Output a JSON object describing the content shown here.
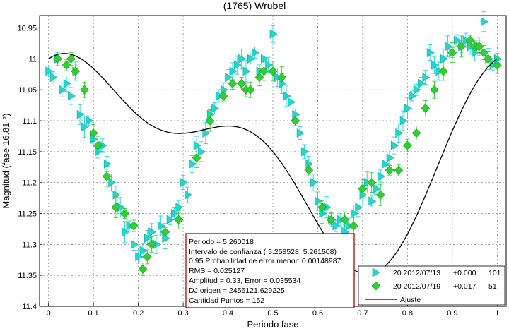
{
  "chart_data": {
    "type": "scatter",
    "title": "(1765) Wrubel",
    "xlabel": "Periodo fase",
    "ylabel": "Magnitud (fase 16.81 °)",
    "xlim": [
      -0.02,
      1.02
    ],
    "ylim": [
      10.93,
      11.4
    ],
    "y_reversed": true,
    "grid": true,
    "x_ticks": [
      "0",
      "0.1",
      "0.2",
      "0.3",
      "0.4",
      "0.5",
      "0.6",
      "0.7",
      "0.8",
      "0.9",
      "1"
    ],
    "y_ticks": [
      "10.95",
      "11",
      "11.05",
      "11.1",
      "11.15",
      "11.2",
      "11.25",
      "11.3",
      "11.35",
      "11.4"
    ],
    "legend_position": "bottom-right",
    "series": [
      {
        "name": "I20 2012/07/13",
        "offset": "+0.000",
        "count": "101",
        "marker": "triangle-right",
        "color": "#20d8d0",
        "points": [
          [
            0.0,
            11.02
          ],
          [
            0.01,
            11.03
          ],
          [
            0.02,
            11.0
          ],
          [
            0.03,
            11.05
          ],
          [
            0.04,
            11.04
          ],
          [
            0.05,
            11.06
          ],
          [
            0.06,
            11.02
          ],
          [
            0.07,
            11.09
          ],
          [
            0.08,
            11.11
          ],
          [
            0.09,
            11.1
          ],
          [
            0.1,
            11.13
          ],
          [
            0.11,
            11.15
          ],
          [
            0.12,
            11.14
          ],
          [
            0.13,
            11.17
          ],
          [
            0.14,
            11.2
          ],
          [
            0.15,
            11.22
          ],
          [
            0.16,
            11.24
          ],
          [
            0.17,
            11.28
          ],
          [
            0.18,
            11.27
          ],
          [
            0.19,
            11.3
          ],
          [
            0.2,
            11.32
          ],
          [
            0.21,
            11.31
          ],
          [
            0.22,
            11.29
          ],
          [
            0.23,
            11.28
          ],
          [
            0.24,
            11.3
          ],
          [
            0.25,
            11.27
          ],
          [
            0.26,
            11.29
          ],
          [
            0.27,
            11.26
          ],
          [
            0.28,
            11.25
          ],
          [
            0.29,
            11.24
          ],
          [
            0.3,
            11.2
          ],
          [
            0.31,
            11.22
          ],
          [
            0.32,
            11.17
          ],
          [
            0.33,
            11.14
          ],
          [
            0.34,
            11.15
          ],
          [
            0.35,
            11.12
          ],
          [
            0.36,
            11.09
          ],
          [
            0.37,
            11.08
          ],
          [
            0.38,
            11.06
          ],
          [
            0.39,
            11.05
          ],
          [
            0.4,
            11.03
          ],
          [
            0.41,
            11.02
          ],
          [
            0.42,
            11.01
          ],
          [
            0.43,
            11.0
          ],
          [
            0.44,
            11.02
          ],
          [
            0.45,
            11.0
          ],
          [
            0.46,
            10.99
          ],
          [
            0.47,
            11.02
          ],
          [
            0.48,
            11.0
          ],
          [
            0.49,
            11.01
          ],
          [
            0.5,
            10.96
          ],
          [
            0.51,
            11.03
          ],
          [
            0.52,
            11.04
          ],
          [
            0.53,
            11.06
          ],
          [
            0.54,
            11.07
          ],
          [
            0.55,
            11.09
          ],
          [
            0.56,
            11.12
          ],
          [
            0.57,
            11.15
          ],
          [
            0.58,
            11.17
          ],
          [
            0.59,
            11.2
          ],
          [
            0.6,
            11.23
          ],
          [
            0.61,
            11.25
          ],
          [
            0.62,
            11.24
          ],
          [
            0.63,
            11.26
          ],
          [
            0.64,
            11.27
          ],
          [
            0.65,
            11.26
          ],
          [
            0.66,
            11.28
          ],
          [
            0.67,
            11.27
          ],
          [
            0.68,
            11.25
          ],
          [
            0.69,
            11.24
          ],
          [
            0.7,
            11.22
          ],
          [
            0.71,
            11.2
          ],
          [
            0.72,
            11.23
          ],
          [
            0.73,
            11.21
          ],
          [
            0.74,
            11.19
          ],
          [
            0.75,
            11.17
          ],
          [
            0.76,
            11.16
          ],
          [
            0.77,
            11.14
          ],
          [
            0.78,
            11.12
          ],
          [
            0.79,
            11.1
          ],
          [
            0.8,
            11.08
          ],
          [
            0.81,
            11.06
          ],
          [
            0.82,
            11.05
          ],
          [
            0.83,
            11.04
          ],
          [
            0.84,
            11.03
          ],
          [
            0.85,
            10.99
          ],
          [
            0.86,
            11.01
          ],
          [
            0.87,
            11.02
          ],
          [
            0.88,
            11.0
          ],
          [
            0.89,
            10.98
          ],
          [
            0.9,
            10.99
          ],
          [
            0.91,
            10.97
          ],
          [
            0.92,
            10.98
          ],
          [
            0.93,
            10.97
          ],
          [
            0.94,
            10.98
          ],
          [
            0.95,
            10.99
          ],
          [
            0.96,
            10.98
          ],
          [
            0.97,
            10.94
          ],
          [
            0.98,
            11.0
          ],
          [
            0.99,
            11.01
          ],
          [
            1.0,
            11.0
          ]
        ]
      },
      {
        "name": "I20 2012/07/19",
        "offset": "+0.017",
        "count": "51",
        "marker": "diamond",
        "color": "#30d030",
        "points": [
          [
            0.02,
            11.0
          ],
          [
            0.04,
            11.01
          ],
          [
            0.05,
            11.0
          ],
          [
            0.06,
            11.02
          ],
          [
            0.08,
            11.05
          ],
          [
            0.1,
            11.12
          ],
          [
            0.11,
            11.14
          ],
          [
            0.13,
            11.19
          ],
          [
            0.15,
            11.24
          ],
          [
            0.17,
            11.25
          ],
          [
            0.19,
            11.27
          ],
          [
            0.21,
            11.34
          ],
          [
            0.22,
            11.32
          ],
          [
            0.23,
            11.3
          ],
          [
            0.26,
            11.28
          ],
          [
            0.29,
            11.26
          ],
          [
            0.33,
            11.16
          ],
          [
            0.36,
            11.1
          ],
          [
            0.39,
            11.06
          ],
          [
            0.41,
            11.04
          ],
          [
            0.43,
            11.04
          ],
          [
            0.44,
            11.05
          ],
          [
            0.45,
            11.05
          ],
          [
            0.47,
            11.03
          ],
          [
            0.48,
            11.02
          ],
          [
            0.5,
            11.02
          ],
          [
            0.52,
            11.03
          ],
          [
            0.55,
            11.1
          ],
          [
            0.58,
            11.18
          ],
          [
            0.61,
            11.24
          ],
          [
            0.63,
            11.26
          ],
          [
            0.66,
            11.26
          ],
          [
            0.68,
            11.27
          ],
          [
            0.7,
            11.21
          ],
          [
            0.72,
            11.2
          ],
          [
            0.74,
            11.22
          ],
          [
            0.76,
            11.18
          ],
          [
            0.78,
            11.18
          ],
          [
            0.8,
            11.14
          ],
          [
            0.82,
            11.12
          ],
          [
            0.84,
            11.08
          ],
          [
            0.86,
            11.05
          ],
          [
            0.88,
            11.02
          ],
          [
            0.9,
            10.99
          ],
          [
            0.92,
            10.98
          ],
          [
            0.94,
            10.97
          ],
          [
            0.95,
            10.98
          ],
          [
            0.96,
            10.98
          ],
          [
            0.97,
            10.99
          ],
          [
            0.98,
            11.0
          ],
          [
            1.0,
            11.01
          ]
        ]
      },
      {
        "name": "Ajuste",
        "marker": "line",
        "color": "#000000",
        "mean": 11.15,
        "harmonics": [
          {
            "a": -0.075,
            "b": -0.11
          },
          {
            "a": -0.075,
            "b": 0.015
          }
        ]
      }
    ],
    "info_box": [
      "Periodo =  5.260018",
      "Intervalo de confianza ( 5.258528,  5.261508)",
      "0.95 Probabilidad de error menor: 0.00148987",
      "RMS = 0.025127",
      "Amplitud = 0.33, Error =   0.035534",
      "DJ origen = 2456121.629225",
      "Cantidad Puntos =     152"
    ]
  }
}
